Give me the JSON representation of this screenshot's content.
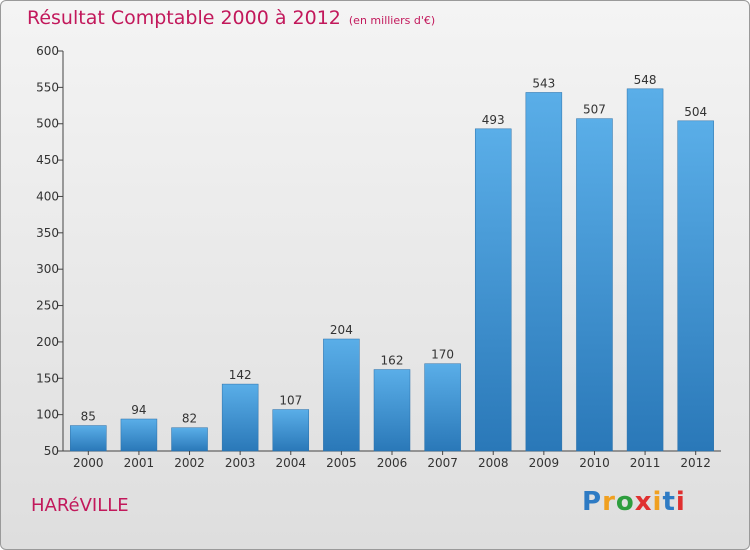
{
  "title": "Résultat Comptable 2000 à 2012",
  "subtitle": "(en milliers d'€)",
  "location": "HARéVILLE",
  "logo": {
    "letters": [
      "P",
      "r",
      "o",
      "x",
      "i",
      "t",
      "i"
    ],
    "colors": [
      "#2e7bc4",
      "#f0a020",
      "#2e9e3e",
      "#e03030",
      "#f0a020",
      "#2e7bc4",
      "#e03030"
    ]
  },
  "colors": {
    "accent": "#c2185b",
    "bar_top": "#5aaee8",
    "bar_bottom": "#2a78b8"
  },
  "chart_data": {
    "type": "bar",
    "title": "Résultat Comptable 2000 à 2012",
    "subtitle": "(en milliers d'€)",
    "categories": [
      "2000",
      "2001",
      "2002",
      "2003",
      "2004",
      "2005",
      "2006",
      "2007",
      "2008",
      "2009",
      "2010",
      "2011",
      "2012"
    ],
    "values": [
      85,
      94,
      82,
      142,
      107,
      204,
      162,
      170,
      493,
      543,
      507,
      548,
      504
    ],
    "ylim": [
      50,
      600
    ],
    "yticks": [
      50,
      100,
      150,
      200,
      250,
      300,
      350,
      400,
      450,
      500,
      550,
      600
    ],
    "grid": false,
    "legend": "none"
  }
}
